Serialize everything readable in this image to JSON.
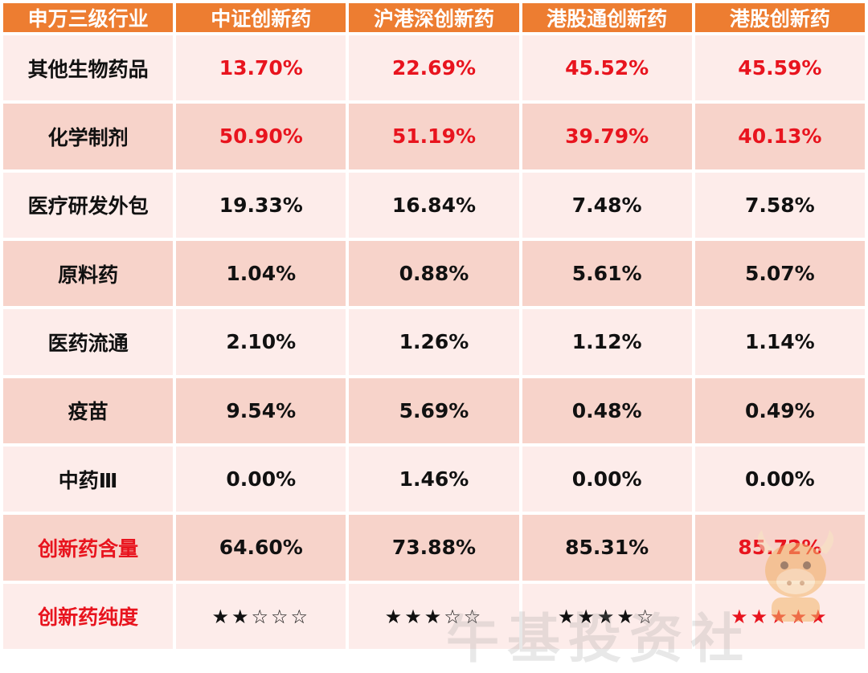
{
  "header": [
    "申万三级行业",
    "中证创新药",
    "沪港深创新药",
    "港股通创新药",
    "港股创新药"
  ],
  "rows": [
    {
      "label": "其他生物药品",
      "values": [
        "13.70%",
        "22.69%",
        "45.52%",
        "45.59%"
      ],
      "shade": "light",
      "values_red": true,
      "label_red": false
    },
    {
      "label": "化学制剂",
      "values": [
        "50.90%",
        "51.19%",
        "39.79%",
        "40.13%"
      ],
      "shade": "dark",
      "values_red": true,
      "label_red": false
    },
    {
      "label": "医疗研发外包",
      "values": [
        "19.33%",
        "16.84%",
        "7.48%",
        "7.58%"
      ],
      "shade": "light",
      "values_red": false,
      "label_red": false
    },
    {
      "label": "原料药",
      "values": [
        "1.04%",
        "0.88%",
        "5.61%",
        "5.07%"
      ],
      "shade": "dark",
      "values_red": false,
      "label_red": false
    },
    {
      "label": "医药流通",
      "values": [
        "2.10%",
        "1.26%",
        "1.12%",
        "1.14%"
      ],
      "shade": "light",
      "values_red": false,
      "label_red": false
    },
    {
      "label": "疫苗",
      "values": [
        "9.54%",
        "5.69%",
        "0.48%",
        "0.49%"
      ],
      "shade": "dark",
      "values_red": false,
      "label_red": false
    },
    {
      "label": "中药Ⅲ",
      "values": [
        "0.00%",
        "1.46%",
        "0.00%",
        "0.00%"
      ],
      "shade": "light",
      "values_red": false,
      "label_red": false
    },
    {
      "label": "创新药含量",
      "values": [
        "64.60%",
        "73.88%",
        "85.31%",
        "85.72%"
      ],
      "shade": "dark",
      "values_red": false,
      "label_red": true,
      "red_columns": [
        3
      ]
    }
  ],
  "purity_row": {
    "label": "创新药纯度",
    "ratings": [
      {
        "filled": 2,
        "total": 5,
        "red": false
      },
      {
        "filled": 3,
        "total": 5,
        "red": false
      },
      {
        "filled": 4,
        "total": 5,
        "red": false
      },
      {
        "filled": 5,
        "total": 5,
        "red": true
      }
    ]
  },
  "colors": {
    "header_bg": "#ed7d31",
    "row_light": "#fdecea",
    "row_dark": "#f7d3ca",
    "highlight_red": "#e8141e"
  },
  "watermark": "牛基投资社"
}
